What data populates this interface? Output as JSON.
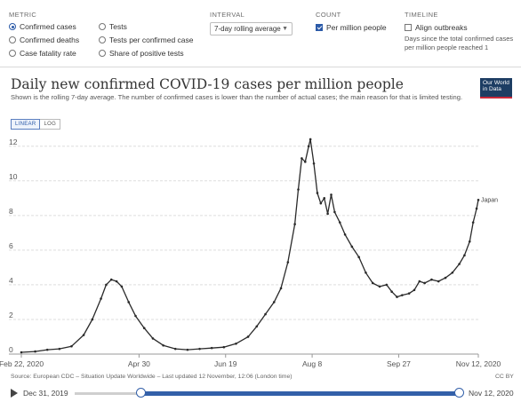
{
  "controls": {
    "metric": {
      "label": "METRIC",
      "options": [
        {
          "label": "Confirmed cases",
          "selected": true
        },
        {
          "label": "Confirmed deaths",
          "selected": false
        },
        {
          "label": "Case fatality rate",
          "selected": false
        },
        {
          "label": "Tests",
          "selected": false
        },
        {
          "label": "Tests per confirmed case",
          "selected": false
        },
        {
          "label": "Share of positive tests",
          "selected": false
        }
      ]
    },
    "interval": {
      "label": "INTERVAL",
      "value": "7-day rolling average"
    },
    "count": {
      "label": "COUNT",
      "option": "Per million people",
      "checked": true
    },
    "timeline": {
      "label": "TIMELINE",
      "option": "Align outbreaks",
      "checked": false,
      "note": "Days since the total confirmed cases per million people reached 1"
    }
  },
  "header": {
    "title": "Daily new confirmed COVID-19 cases per million people",
    "subtitle": "Shown is the rolling 7-day average. The number of confirmed cases is lower than the number of actual cases; the main reason for that is limited testing.",
    "logo": "Our World in Data"
  },
  "scale_toggle": {
    "linear": "LINEAR",
    "log": "LOG",
    "active": "linear"
  },
  "chart_data": {
    "type": "line",
    "title": "Daily new confirmed COVID-19 cases per million people",
    "ylim": [
      0,
      12.5
    ],
    "yticks": [
      0,
      2,
      4,
      6,
      8,
      10,
      12
    ],
    "xlim": [
      "2020-02-22",
      "2020-11-12"
    ],
    "xticks": [
      {
        "date": "2020-02-22",
        "label": "Feb 22, 2020"
      },
      {
        "date": "2020-04-30",
        "label": "Apr 30"
      },
      {
        "date": "2020-06-19",
        "label": "Jun 19"
      },
      {
        "date": "2020-08-08",
        "label": "Aug 8"
      },
      {
        "date": "2020-09-27",
        "label": "Sep 27"
      },
      {
        "date": "2020-11-12",
        "label": "Nov 12, 2020"
      }
    ],
    "grid": "horizontal",
    "legend": "inline-end",
    "series": [
      {
        "name": "Japan",
        "color": "#2a2a2a",
        "points": [
          [
            "2020-02-22",
            0.1
          ],
          [
            "2020-03-01",
            0.15
          ],
          [
            "2020-03-08",
            0.25
          ],
          [
            "2020-03-15",
            0.3
          ],
          [
            "2020-03-22",
            0.45
          ],
          [
            "2020-03-29",
            1.1
          ],
          [
            "2020-04-03",
            2.0
          ],
          [
            "2020-04-08",
            3.2
          ],
          [
            "2020-04-11",
            4.0
          ],
          [
            "2020-04-14",
            4.3
          ],
          [
            "2020-04-17",
            4.2
          ],
          [
            "2020-04-20",
            3.9
          ],
          [
            "2020-04-24",
            3.0
          ],
          [
            "2020-04-28",
            2.2
          ],
          [
            "2020-05-03",
            1.5
          ],
          [
            "2020-05-08",
            0.9
          ],
          [
            "2020-05-14",
            0.5
          ],
          [
            "2020-05-21",
            0.3
          ],
          [
            "2020-05-28",
            0.25
          ],
          [
            "2020-06-04",
            0.3
          ],
          [
            "2020-06-11",
            0.35
          ],
          [
            "2020-06-18",
            0.4
          ],
          [
            "2020-06-25",
            0.6
          ],
          [
            "2020-07-02",
            1.0
          ],
          [
            "2020-07-07",
            1.6
          ],
          [
            "2020-07-12",
            2.3
          ],
          [
            "2020-07-17",
            3.0
          ],
          [
            "2020-07-21",
            3.8
          ],
          [
            "2020-07-25",
            5.3
          ],
          [
            "2020-07-29",
            7.5
          ],
          [
            "2020-07-31",
            9.5
          ],
          [
            "2020-08-02",
            11.3
          ],
          [
            "2020-08-04",
            11.1
          ],
          [
            "2020-08-06",
            12.0
          ],
          [
            "2020-08-07",
            12.4
          ],
          [
            "2020-08-09",
            11.0
          ],
          [
            "2020-08-11",
            9.3
          ],
          [
            "2020-08-13",
            8.7
          ],
          [
            "2020-08-15",
            9.0
          ],
          [
            "2020-08-17",
            8.1
          ],
          [
            "2020-08-19",
            9.2
          ],
          [
            "2020-08-21",
            8.2
          ],
          [
            "2020-08-24",
            7.6
          ],
          [
            "2020-08-27",
            6.9
          ],
          [
            "2020-08-31",
            6.2
          ],
          [
            "2020-09-04",
            5.6
          ],
          [
            "2020-09-08",
            4.7
          ],
          [
            "2020-09-12",
            4.1
          ],
          [
            "2020-09-16",
            3.9
          ],
          [
            "2020-09-20",
            4.0
          ],
          [
            "2020-09-23",
            3.6
          ],
          [
            "2020-09-26",
            3.3
          ],
          [
            "2020-09-29",
            3.4
          ],
          [
            "2020-10-03",
            3.5
          ],
          [
            "2020-10-06",
            3.7
          ],
          [
            "2020-10-09",
            4.2
          ],
          [
            "2020-10-12",
            4.1
          ],
          [
            "2020-10-16",
            4.3
          ],
          [
            "2020-10-20",
            4.2
          ],
          [
            "2020-10-24",
            4.4
          ],
          [
            "2020-10-28",
            4.7
          ],
          [
            "2020-11-01",
            5.2
          ],
          [
            "2020-11-04",
            5.7
          ],
          [
            "2020-11-07",
            6.5
          ],
          [
            "2020-11-09",
            7.6
          ],
          [
            "2020-11-11",
            8.4
          ],
          [
            "2020-11-12",
            8.9
          ]
        ]
      }
    ]
  },
  "footer": {
    "source": "Source: European CDC – Situation Update Worldwide – Last updated 12 November, 12:06 (London time)",
    "license": "CC BY",
    "timeline_start": "Dec 31, 2019",
    "timeline_end": "Nov 12, 2020"
  }
}
